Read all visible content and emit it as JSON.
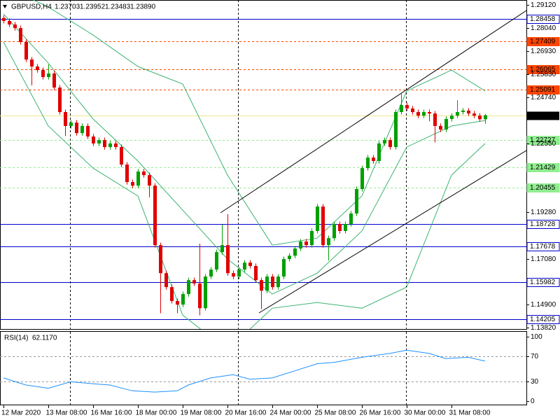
{
  "header": {
    "symbol": "GBPUSD,H4",
    "open": 1.23703,
    "high": 1.23952,
    "low": 1.23483,
    "close": {
      "value": 1.2389,
      "label": "1.23890"
    }
  },
  "chart_data": [
    {
      "type": "candlestick",
      "up_color": "#00a000",
      "down_color": "#e00000",
      "xlim": [
        -0.625,
        93.375
      ],
      "ylim": [
        1.1382,
        1.2912
      ],
      "yticks": [
        {
          "value": 1.2912,
          "label": "1.29120"
        },
        {
          "value": 1.2804,
          "label": "1.28040"
        },
        {
          "value": 1.2693,
          "label": "1.26930"
        },
        {
          "value": 1.2583,
          "label": "1.25830"
        },
        {
          "value": 1.2474,
          "label": "1.24740"
        },
        {
          "value": 1.2255,
          "label": "1.22550"
        },
        {
          "value": 1.1928,
          "label": "1.19280"
        },
        {
          "value": 1.1708,
          "label": "1.17080"
        },
        {
          "value": 1.149,
          "label": "1.14900"
        },
        {
          "value": 1.1382,
          "label": "1.13820"
        }
      ],
      "xticks": [
        {
          "value": 0,
          "label": "12 Mar 2020"
        },
        {
          "value": 8,
          "label": "13 Mar 08:00"
        },
        {
          "value": 16,
          "label": "16 Mar 16:00"
        },
        {
          "value": 24,
          "label": "18 Mar 00:00"
        },
        {
          "value": 32,
          "label": "19 Mar 08:00"
        },
        {
          "value": 40,
          "label": "20 Mar 16:00"
        },
        {
          "value": 48,
          "label": "24 Mar 00:00"
        },
        {
          "value": 56,
          "label": "25 Mar 08:00"
        },
        {
          "value": 64,
          "label": "26 Mar 16:00"
        },
        {
          "value": 72,
          "label": "30 Mar 00:00"
        },
        {
          "value": 80,
          "label": "31 Mar 08:00"
        }
      ],
      "open": [
        1.285,
        1.2836,
        1.2819,
        1.2802,
        1.2736,
        1.2653,
        1.262,
        1.2603,
        1.257,
        1.2587,
        1.252,
        1.2404,
        1.2338,
        1.2354,
        1.2304,
        1.2338,
        1.2288,
        1.2255,
        1.2271,
        1.2238,
        1.2255,
        1.2238,
        1.2155,
        1.2072,
        1.2055,
        1.2122,
        1.2105,
        1.2055,
        1.1773,
        1.164,
        1.1574,
        1.1508,
        1.1491,
        1.1541,
        1.1607,
        1.1591,
        1.1474,
        1.1624,
        1.1657,
        1.174,
        1.1773,
        1.164,
        1.1624,
        1.1657,
        1.169,
        1.1674,
        1.1607,
        1.1557,
        1.1624,
        1.1574,
        1.1624,
        1.1707,
        1.1723,
        1.1757,
        1.179,
        1.1773,
        1.184,
        1.1956,
        1.1773,
        1.1806,
        1.1873,
        1.184,
        1.1873,
        1.1923,
        1.2039,
        1.2138,
        1.2188,
        1.2172,
        1.2255,
        1.2271,
        1.2238,
        1.2404,
        1.2437,
        1.2421,
        1.2404,
        1.2387,
        1.2404,
        1.2397,
        1.2338,
        1.2321,
        1.2371,
        1.2387,
        1.2404,
        1.2411,
        1.2397,
        1.2387,
        1.237
      ],
      "high": [
        1.2862,
        1.2848,
        1.2831,
        1.2814,
        1.2748,
        1.2665,
        1.2632,
        1.2615,
        1.263,
        1.2599,
        1.2532,
        1.2416,
        1.2366,
        1.2366,
        1.235,
        1.235,
        1.23,
        1.2283,
        1.2283,
        1.2267,
        1.2267,
        1.225,
        1.2167,
        1.2084,
        1.2134,
        1.2134,
        1.2117,
        1.2067,
        1.1785,
        1.1652,
        1.1586,
        1.152,
        1.1553,
        1.1619,
        1.1619,
        1.178,
        1.1636,
        1.1669,
        1.1752,
        1.187,
        1.192,
        1.1652,
        1.1669,
        1.1702,
        1.1702,
        1.1686,
        1.1619,
        1.1636,
        1.1636,
        1.1636,
        1.1719,
        1.1735,
        1.1769,
        1.1802,
        1.1802,
        1.1852,
        1.1968,
        1.1968,
        1.1818,
        1.1885,
        1.1885,
        1.1885,
        1.1935,
        1.2051,
        1.215,
        1.22,
        1.22,
        1.2267,
        1.2283,
        1.2283,
        1.2416,
        1.249,
        1.2449,
        1.2433,
        1.2416,
        1.2416,
        1.2416,
        1.2409,
        1.235,
        1.2383,
        1.2399,
        1.246,
        1.2423,
        1.2423,
        1.2409,
        1.2399,
        1.2395
      ],
      "low": [
        1.2824,
        1.2807,
        1.279,
        1.2724,
        1.2641,
        1.253,
        1.2591,
        1.2558,
        1.2558,
        1.2508,
        1.2392,
        1.229,
        1.2326,
        1.2292,
        1.2292,
        1.2276,
        1.2243,
        1.2243,
        1.2226,
        1.2226,
        1.2226,
        1.2143,
        1.206,
        1.2043,
        1.2043,
        1.2093,
        1.2,
        1.1761,
        1.145,
        1.1562,
        1.1496,
        1.145,
        1.1479,
        1.1529,
        1.1579,
        1.144,
        1.1462,
        1.1612,
        1.1645,
        1.1728,
        1.1628,
        1.1612,
        1.1612,
        1.1645,
        1.1662,
        1.1595,
        1.147,
        1.1545,
        1.1562,
        1.1562,
        1.1612,
        1.1695,
        1.1711,
        1.1745,
        1.1761,
        1.1761,
        1.1828,
        1.1761,
        1.17,
        1.1794,
        1.1828,
        1.1828,
        1.1861,
        1.1911,
        1.2027,
        1.2126,
        1.216,
        1.216,
        1.2243,
        1.2226,
        1.2226,
        1.2392,
        1.2409,
        1.2392,
        1.2375,
        1.2375,
        1.236,
        1.226,
        1.2309,
        1.2309,
        1.2359,
        1.2375,
        1.2392,
        1.2385,
        1.2375,
        1.2358,
        1.2348
      ],
      "close": [
        1.2836,
        1.2819,
        1.2802,
        1.2736,
        1.2653,
        1.262,
        1.2603,
        1.257,
        1.2587,
        1.252,
        1.2404,
        1.2338,
        1.2354,
        1.2304,
        1.2338,
        1.2288,
        1.2255,
        1.2271,
        1.2238,
        1.2255,
        1.2238,
        1.2155,
        1.2072,
        1.2055,
        1.2122,
        1.2105,
        1.2055,
        1.1773,
        1.164,
        1.1574,
        1.1508,
        1.1491,
        1.1541,
        1.1607,
        1.1591,
        1.1474,
        1.1624,
        1.1657,
        1.174,
        1.1773,
        1.164,
        1.1624,
        1.1657,
        1.169,
        1.1674,
        1.1607,
        1.1557,
        1.1624,
        1.1574,
        1.1624,
        1.1707,
        1.1723,
        1.1757,
        1.179,
        1.1773,
        1.184,
        1.1956,
        1.1773,
        1.1806,
        1.1873,
        1.184,
        1.1873,
        1.1923,
        1.2039,
        1.2138,
        1.2188,
        1.2172,
        1.2255,
        1.2271,
        1.2238,
        1.2404,
        1.2437,
        1.2421,
        1.2404,
        1.2387,
        1.2404,
        1.2397,
        1.2338,
        1.2321,
        1.2371,
        1.2387,
        1.2404,
        1.2411,
        1.2397,
        1.2387,
        1.237,
        1.2389
      ],
      "bands": {
        "x": [
          0,
          8,
          16,
          24,
          32,
          40,
          48,
          56,
          64,
          72,
          80,
          86
        ],
        "color": "#3cb371",
        "series": [
          {
            "values": [
              1.3002,
              1.2902,
              1.2769,
              1.262,
              1.2537,
              1.2105,
              1.1773,
              1.1806,
              1.2006,
              1.2504,
              1.2603,
              1.2504
            ]
          },
          {
            "values": [
              1.2869,
              1.2636,
              1.2371,
              1.2172,
              1.1939,
              1.1707,
              1.1541,
              1.164,
              1.184,
              1.2238,
              1.2338,
              1.2364
            ]
          },
          {
            "values": [
              1.2736,
              1.2338,
              1.2138,
              1.2006,
              1.1441,
              1.1275,
              1.1474,
              1.1501,
              1.1474,
              1.1574,
              1.2105,
              1.2255
            ]
          }
        ]
      },
      "levels": [
        {
          "value": 1.28458,
          "color": "#0000cd",
          "label_bg": "#ffffff",
          "label_color": "#000000",
          "dashed": false
        },
        {
          "value": 1.27409,
          "color": "#ff4500",
          "label_bg": "#ff4500",
          "label_color": "#ffffff",
          "dashed": true
        },
        {
          "value": 1.26065,
          "color": "#ff4500",
          "label_bg": "#ff4500",
          "label_color": "#ffffff",
          "dashed": true
        },
        {
          "value": 1.25091,
          "color": "#ff4500",
          "label_bg": "#ff4500",
          "label_color": "#ffffff",
          "dashed": true
        },
        {
          "value": 1.22727,
          "color": "#90ee90",
          "label_bg": "#90ee90",
          "label_color": "#ffffff",
          "dashed": true
        },
        {
          "value": 1.21429,
          "color": "#90ee90",
          "label_bg": "#90ee90",
          "label_color": "#ffffff",
          "dashed": true
        },
        {
          "value": 1.20455,
          "color": "#90ee90",
          "label_bg": "#90ee90",
          "label_color": "#ffffff",
          "dashed": true
        },
        {
          "value": 1.18728,
          "color": "#0000cd",
          "label_bg": "#ffffff",
          "label_color": "#000000",
          "dashed": false
        },
        {
          "value": 1.17678,
          "color": "#0000cd",
          "label_bg": "#ffffff",
          "label_color": "#000000",
          "dashed": false
        },
        {
          "value": 1.15982,
          "color": "#0000cd",
          "label_bg": "#ffffff",
          "label_color": "#000000",
          "dashed": false
        },
        {
          "value": 1.14205,
          "color": "#0000cd",
          "label_bg": "#ffffff",
          "label_color": "#000000",
          "dashed": false
        }
      ],
      "current_price": {
        "value": 1.2389,
        "label": "1.23890"
      },
      "current_color": "#f0e68c"
    },
    {
      "type": "line",
      "title": "RSI(14)",
      "value_label": "62.1170",
      "color": "#1e90ff",
      "xlim": [
        -0.625,
        93.375
      ],
      "ylim": [
        0,
        100
      ],
      "yticks": [
        100,
        70,
        30,
        0
      ],
      "levels": [
        70,
        30
      ],
      "x": [
        0,
        4,
        8,
        12,
        16,
        19,
        23,
        27,
        31,
        33,
        37,
        41,
        44,
        48,
        52,
        56,
        59,
        64,
        69,
        72,
        76,
        79,
        83,
        86
      ],
      "values": [
        36,
        25,
        20,
        30,
        27,
        25,
        16,
        14,
        16,
        25,
        36,
        41,
        34,
        36,
        47,
        58,
        60,
        68,
        74,
        79,
        74,
        66,
        68,
        62.117
      ]
    }
  ]
}
